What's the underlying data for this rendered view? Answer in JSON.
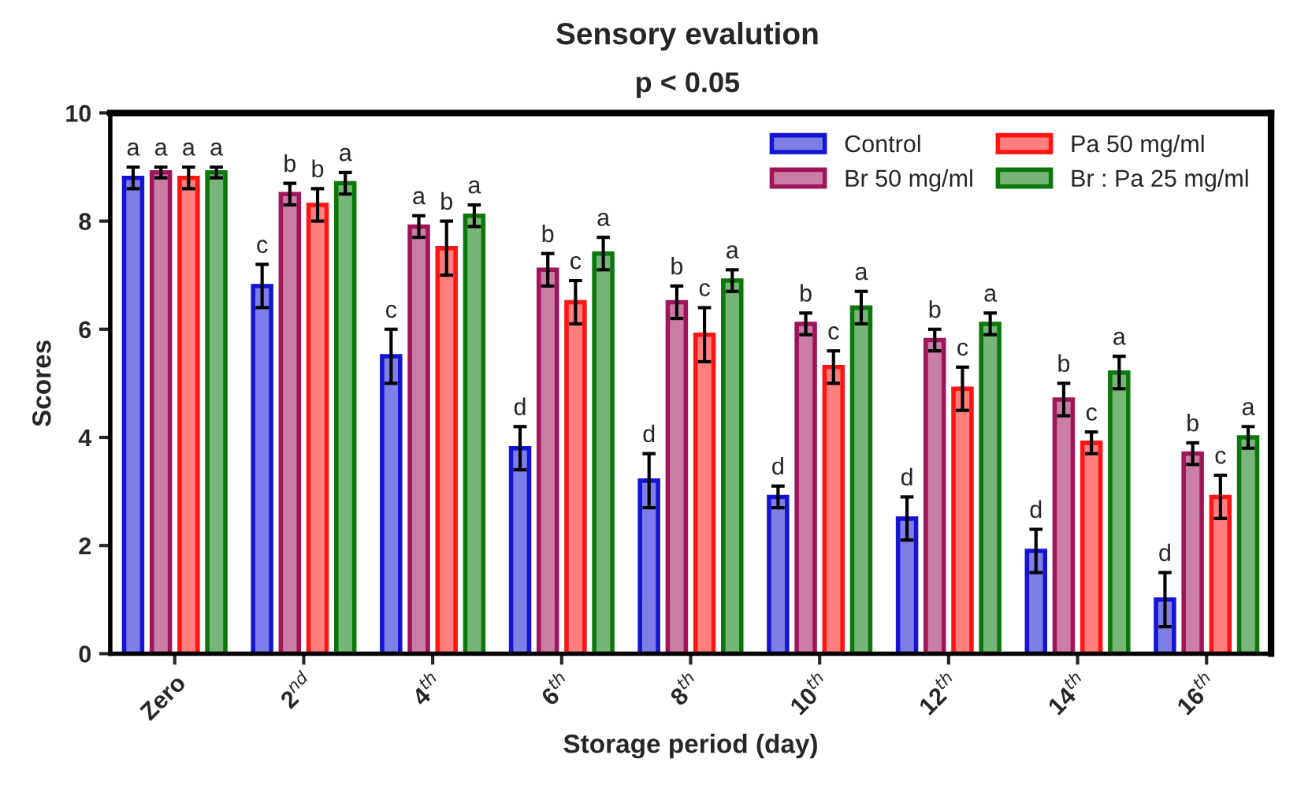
{
  "chart_data": {
    "type": "bar",
    "title": "Sensory evalution",
    "subtitle": "p < 0.05",
    "xlabel": "Storage period (day)",
    "ylabel": "Scores",
    "categories": [
      "Zero",
      "2$^{nd}$",
      "4$^{th}$",
      "6$^{th}$",
      "8$^{th}$",
      "10$^{th}$",
      "12$^{th}$",
      "14$^{th}$",
      "16$^{th}$"
    ],
    "series": [
      {
        "name": "Control",
        "color": "#1414d2",
        "values": [
          8.8,
          6.8,
          5.5,
          3.8,
          3.2,
          2.9,
          2.5,
          1.9,
          1.0
        ],
        "errors": [
          0.2,
          0.4,
          0.5,
          0.4,
          0.5,
          0.2,
          0.4,
          0.4,
          0.5
        ],
        "value_labels": [
          "a",
          "c",
          "c",
          "d",
          "d",
          "d",
          "d",
          "d",
          "d"
        ]
      },
      {
        "name": "Br 50 mg/ml",
        "color": "#a0145a",
        "values": [
          8.9,
          8.5,
          7.9,
          7.1,
          6.5,
          6.1,
          5.8,
          4.7,
          3.7
        ],
        "errors": [
          0.1,
          0.2,
          0.2,
          0.3,
          0.3,
          0.2,
          0.2,
          0.3,
          0.2
        ],
        "value_labels": [
          "a",
          "b",
          "a",
          "b",
          "b",
          "b",
          "b",
          "b",
          "b"
        ]
      },
      {
        "name": "Pa 50 mg/ml",
        "color": "#ff1414",
        "values": [
          8.8,
          8.3,
          7.5,
          6.5,
          5.9,
          5.3,
          4.9,
          3.9,
          2.9
        ],
        "errors": [
          0.2,
          0.3,
          0.5,
          0.4,
          0.5,
          0.3,
          0.4,
          0.2,
          0.4
        ],
        "value_labels": [
          "a",
          "b",
          "b",
          "c",
          "c",
          "c",
          "c",
          "c",
          "c"
        ]
      },
      {
        "name": "Br : Pa 25 mg/ml",
        "color": "#0a780a",
        "values": [
          8.9,
          8.7,
          8.1,
          7.4,
          6.9,
          6.4,
          6.1,
          5.2,
          4.0
        ],
        "errors": [
          0.1,
          0.2,
          0.2,
          0.3,
          0.2,
          0.3,
          0.2,
          0.3,
          0.2
        ],
        "value_labels": [
          "a",
          "a",
          "a",
          "a",
          "a",
          "a",
          "a",
          "a",
          "a"
        ]
      }
    ],
    "ylim": [
      0,
      10
    ],
    "yticks": [
      0,
      2,
      4,
      6,
      8,
      10
    ],
    "grid": false,
    "legend": "top right"
  }
}
